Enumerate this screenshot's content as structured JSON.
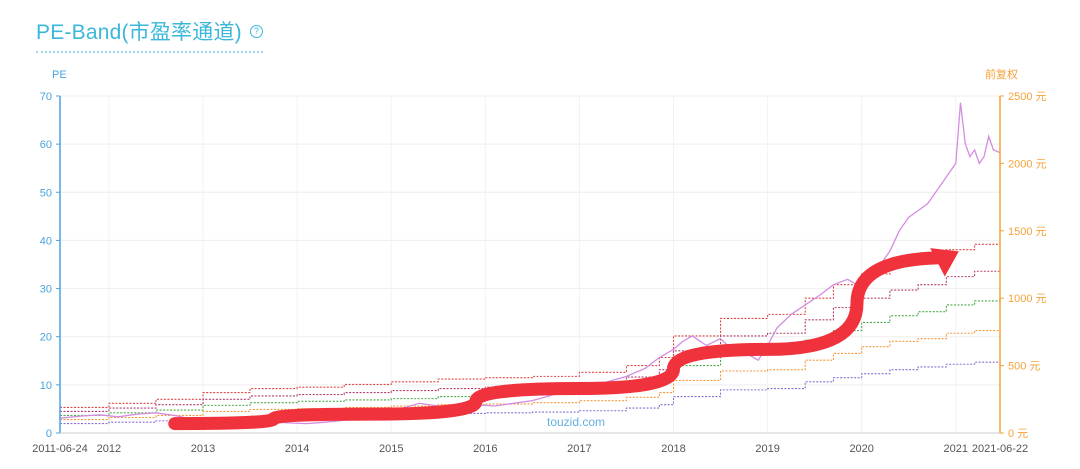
{
  "header": {
    "title": "PE-Band(市盈率通道)",
    "help_icon": "question-circle-icon"
  },
  "chart_data": {
    "type": "line",
    "left_axis_title": "PE",
    "right_axis_title": "前复权",
    "ylim_left": [
      0,
      70
    ],
    "yticks_left": [
      "0",
      "10",
      "20",
      "30",
      "40",
      "50",
      "60",
      "70"
    ],
    "ylim_right": [
      0,
      2500
    ],
    "yticks_right": [
      "0 元",
      "500 元",
      "1000 元",
      "1500 元",
      "2000 元",
      "2500 元"
    ],
    "xlim": [
      2011.48,
      2021.47
    ],
    "xticks": [
      {
        "label": "2011-06-24",
        "t": 2011.48
      },
      {
        "label": "2012",
        "t": 2012.0
      },
      {
        "label": "2013",
        "t": 2013.0
      },
      {
        "label": "2014",
        "t": 2014.0
      },
      {
        "label": "2015",
        "t": 2015.0
      },
      {
        "label": "2016",
        "t": 2016.0
      },
      {
        "label": "2017",
        "t": 2017.0
      },
      {
        "label": "2018",
        "t": 2018.0
      },
      {
        "label": "2019",
        "t": 2019.0
      },
      {
        "label": "2020",
        "t": 2020.0
      },
      {
        "label": "2021",
        "t": 2021.0
      },
      {
        "label": "2021-06-22",
        "t": 2021.47
      }
    ],
    "grid": true,
    "watermark": "touzid.com",
    "colors": {
      "left_axis": "#4aa3df",
      "right_axis": "#f5a23a",
      "price": "#d48ce0",
      "arrow": "#f0323c"
    },
    "price_series": {
      "x": [
        2011.48,
        2011.7,
        2011.9,
        2012.1,
        2012.3,
        2012.5,
        2012.7,
        2012.9,
        2013.1,
        2013.3,
        2013.5,
        2013.7,
        2013.9,
        2014.1,
        2014.3,
        2014.5,
        2014.7,
        2014.9,
        2015.1,
        2015.3,
        2015.5,
        2015.7,
        2015.9,
        2016.1,
        2016.3,
        2016.5,
        2016.7,
        2016.9,
        2017.1,
        2017.3,
        2017.5,
        2017.7,
        2017.85,
        2018.0,
        2018.1,
        2018.2,
        2018.35,
        2018.5,
        2018.65,
        2018.8,
        2018.9,
        2019.0,
        2019.1,
        2019.25,
        2019.4,
        2019.55,
        2019.7,
        2019.85,
        2020.0,
        2020.1,
        2020.2,
        2020.3,
        2020.4,
        2020.5,
        2020.6,
        2020.7,
        2020.8,
        2020.9,
        2021.0,
        2021.05,
        2021.1,
        2021.15,
        2021.2,
        2021.25,
        2021.3,
        2021.35,
        2021.4,
        2021.47
      ],
      "values": [
        110,
        125,
        135,
        120,
        140,
        150,
        130,
        100,
        90,
        95,
        80,
        85,
        75,
        70,
        80,
        95,
        110,
        135,
        180,
        220,
        200,
        190,
        210,
        200,
        220,
        240,
        280,
        320,
        340,
        380,
        420,
        480,
        560,
        620,
        680,
        720,
        650,
        700,
        600,
        580,
        540,
        650,
        780,
        880,
        950,
        1020,
        1100,
        1140,
        1080,
        1150,
        1250,
        1350,
        1500,
        1600,
        1650,
        1700,
        1800,
        1900,
        2000,
        2450,
        2150,
        2050,
        2100,
        2000,
        2050,
        2200,
        2100,
        2080
      ]
    },
    "band_series": [
      {
        "color": "#e04848",
        "x": [
          2011.48,
          2012.0,
          2012.5,
          2013.0,
          2013.5,
          2014.0,
          2014.5,
          2015.0,
          2015.5,
          2016.0,
          2016.5,
          2017.0,
          2017.5,
          2017.85,
          2018.0,
          2018.5,
          2019.0,
          2019.4,
          2019.7,
          2020.0,
          2020.3,
          2020.6,
          2020.9,
          2021.2,
          2021.47
        ],
        "values": [
          190,
          220,
          250,
          300,
          330,
          340,
          360,
          380,
          400,
          410,
          420,
          450,
          500,
          560,
          720,
          850,
          880,
          1000,
          1100,
          1180,
          1250,
          1300,
          1360,
          1400,
          1460
        ]
      },
      {
        "color": "#b04070",
        "x": [
          2011.48,
          2012.0,
          2012.5,
          2013.0,
          2013.5,
          2014.0,
          2014.5,
          2015.0,
          2015.5,
          2016.0,
          2016.5,
          2017.0,
          2017.5,
          2017.85,
          2018.0,
          2018.5,
          2019.0,
          2019.4,
          2019.7,
          2020.0,
          2020.3,
          2020.6,
          2020.9,
          2021.2,
          2021.47
        ],
        "values": [
          160,
          185,
          210,
          250,
          275,
          285,
          300,
          315,
          330,
          340,
          350,
          375,
          415,
          470,
          610,
          720,
          740,
          840,
          930,
          1000,
          1060,
          1100,
          1160,
          1200,
          1230
        ]
      },
      {
        "color": "#4caa4c",
        "x": [
          2011.48,
          2012.0,
          2012.5,
          2013.0,
          2013.5,
          2014.0,
          2014.5,
          2015.0,
          2015.5,
          2016.0,
          2016.5,
          2017.0,
          2017.5,
          2017.85,
          2018.0,
          2018.5,
          2019.0,
          2019.4,
          2019.7,
          2020.0,
          2020.3,
          2020.6,
          2020.9,
          2021.2,
          2021.47
        ],
        "values": [
          130,
          150,
          170,
          205,
          225,
          235,
          245,
          255,
          270,
          280,
          290,
          305,
          340,
          385,
          500,
          590,
          605,
          690,
          760,
          820,
          870,
          900,
          950,
          980,
          1000
        ]
      },
      {
        "color": "#f29a3c",
        "x": [
          2011.48,
          2012.0,
          2012.5,
          2013.0,
          2013.5,
          2014.0,
          2014.5,
          2015.0,
          2015.5,
          2016.0,
          2016.5,
          2017.0,
          2017.5,
          2017.85,
          2018.0,
          2018.5,
          2019.0,
          2019.4,
          2019.7,
          2020.0,
          2020.3,
          2020.6,
          2020.9,
          2021.2,
          2021.47
        ],
        "values": [
          100,
          115,
          130,
          160,
          175,
          180,
          190,
          200,
          210,
          215,
          225,
          240,
          265,
          300,
          390,
          460,
          470,
          540,
          590,
          640,
          680,
          700,
          740,
          760,
          780
        ]
      },
      {
        "color": "#8a6fd0",
        "x": [
          2011.48,
          2012.0,
          2012.5,
          2013.0,
          2013.5,
          2014.0,
          2014.5,
          2015.0,
          2015.5,
          2016.0,
          2016.5,
          2017.0,
          2017.5,
          2017.85,
          2018.0,
          2018.5,
          2019.0,
          2019.4,
          2019.7,
          2020.0,
          2020.3,
          2020.6,
          2020.9,
          2021.2,
          2021.47
        ],
        "values": [
          70,
          80,
          90,
          110,
          120,
          125,
          130,
          140,
          145,
          150,
          155,
          165,
          185,
          210,
          270,
          320,
          330,
          380,
          410,
          440,
          470,
          490,
          510,
          525,
          540
        ]
      }
    ],
    "arrow": {
      "x": [
        2012.7,
        2014.8,
        2017.0,
        2019.0,
        2020.9
      ],
      "values": [
        70,
        140,
        330,
        620,
        1300
      ]
    }
  }
}
